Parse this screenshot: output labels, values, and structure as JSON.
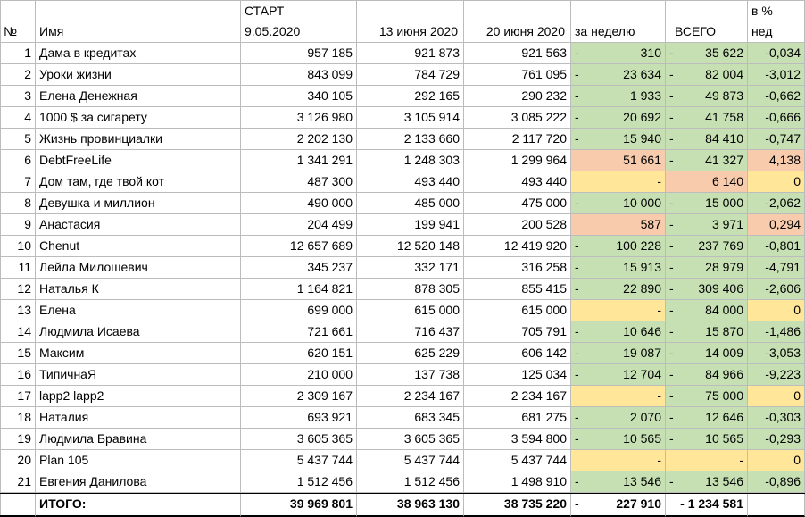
{
  "headers": {
    "num": "№",
    "name": "Имя",
    "start_line1": "СТАРТ",
    "start_line2": "9.05.2020",
    "date1": "13 июня 2020",
    "date2": "20 июня 2020",
    "week": "за неделю",
    "total": "ВСЕГО",
    "pct_line1": "в %",
    "pct_line2": "нед"
  },
  "rows": [
    {
      "n": "1",
      "name": "Дама в кредитах",
      "start": "957 185",
      "d1": "921 873",
      "d2": "921 563",
      "wdash": "-",
      "week": "310",
      "tdash": "-",
      "total": "35 622",
      "pct": "-0,034",
      "wcolor": "green",
      "tcolor": "green",
      "pcolor": "green"
    },
    {
      "n": "2",
      "name": "Уроки жизни",
      "start": "843 099",
      "d1": "784 729",
      "d2": "761 095",
      "wdash": "-",
      "week": "23 634",
      "tdash": "-",
      "total": "82 004",
      "pct": "-3,012",
      "wcolor": "green",
      "tcolor": "green",
      "pcolor": "green"
    },
    {
      "n": "3",
      "name": "Елена Денежная",
      "start": "340 105",
      "d1": "292 165",
      "d2": "290 232",
      "wdash": "-",
      "week": "1 933",
      "tdash": "-",
      "total": "49 873",
      "pct": "-0,662",
      "wcolor": "green",
      "tcolor": "green",
      "pcolor": "green"
    },
    {
      "n": "4",
      "name": "1000 $ за сигарету",
      "start": "3 126 980",
      "d1": "3 105 914",
      "d2": "3 085 222",
      "wdash": "-",
      "week": "20 692",
      "tdash": "-",
      "total": "41 758",
      "pct": "-0,666",
      "wcolor": "green",
      "tcolor": "green",
      "pcolor": "green"
    },
    {
      "n": "5",
      "name": "Жизнь провинциалки",
      "start": "2 202 130",
      "d1": "2 133 660",
      "d2": "2 117 720",
      "wdash": "-",
      "week": "15 940",
      "tdash": "-",
      "total": "84 410",
      "pct": "-0,747",
      "wcolor": "green",
      "tcolor": "green",
      "pcolor": "green"
    },
    {
      "n": "6",
      "name": "DebtFreeLife",
      "start": "1 341 291",
      "d1": "1 248 303",
      "d2": "1 299 964",
      "wdash": "",
      "week": "51 661",
      "tdash": "-",
      "total": "41 327",
      "pct": "4,138",
      "wcolor": "orange",
      "tcolor": "green",
      "pcolor": "orange"
    },
    {
      "n": "7",
      "name": "Дом там, где твой кот",
      "start": "487 300",
      "d1": "493 440",
      "d2": "493 440",
      "wdash": "",
      "week": "-",
      "tdash": "",
      "total": "6 140",
      "pct": "0",
      "wcolor": "yellow",
      "tcolor": "orange",
      "pcolor": "yellow"
    },
    {
      "n": "8",
      "name": "Девушка и миллион",
      "start": "490 000",
      "d1": "485 000",
      "d2": "475 000",
      "wdash": "-",
      "week": "10 000",
      "tdash": "-",
      "total": "15 000",
      "pct": "-2,062",
      "wcolor": "green",
      "tcolor": "green",
      "pcolor": "green"
    },
    {
      "n": "9",
      "name": "Анастасия",
      "start": "204 499",
      "d1": "199 941",
      "d2": "200 528",
      "wdash": "",
      "week": "587",
      "tdash": "-",
      "total": "3 971",
      "pct": "0,294",
      "wcolor": "orange",
      "tcolor": "green",
      "pcolor": "orange"
    },
    {
      "n": "10",
      "name": "Chenut",
      "start": "12 657 689",
      "d1": "12 520 148",
      "d2": "12 419 920",
      "wdash": "-",
      "week": "100 228",
      "tdash": "-",
      "total": "237 769",
      "pct": "-0,801",
      "wcolor": "green",
      "tcolor": "green",
      "pcolor": "green"
    },
    {
      "n": "11",
      "name": "Лейла Милошевич",
      "start": "345 237",
      "d1": "332 171",
      "d2": "316 258",
      "wdash": "-",
      "week": "15 913",
      "tdash": "-",
      "total": "28 979",
      "pct": "-4,791",
      "wcolor": "green",
      "tcolor": "green",
      "pcolor": "green"
    },
    {
      "n": "12",
      "name": "Наталья К",
      "start": "1 164 821",
      "d1": "878 305",
      "d2": "855 415",
      "wdash": "-",
      "week": "22 890",
      "tdash": "-",
      "total": "309 406",
      "pct": "-2,606",
      "wcolor": "green",
      "tcolor": "green",
      "pcolor": "green"
    },
    {
      "n": "13",
      "name": "Елена",
      "start": "699 000",
      "d1": "615 000",
      "d2": "615 000",
      "wdash": "",
      "week": "-",
      "tdash": "-",
      "total": "84 000",
      "pct": "0",
      "wcolor": "yellow",
      "tcolor": "green",
      "pcolor": "yellow"
    },
    {
      "n": "14",
      "name": "Людмила Исаева",
      "start": "721 661",
      "d1": "716 437",
      "d2": "705 791",
      "wdash": "-",
      "week": "10 646",
      "tdash": "-",
      "total": "15 870",
      "pct": "-1,486",
      "wcolor": "green",
      "tcolor": "green",
      "pcolor": "green"
    },
    {
      "n": "15",
      "name": "Максим",
      "start": "620 151",
      "d1": "625 229",
      "d2": "606 142",
      "wdash": "-",
      "week": "19 087",
      "tdash": "-",
      "total": "14 009",
      "pct": "-3,053",
      "wcolor": "green",
      "tcolor": "green",
      "pcolor": "green"
    },
    {
      "n": "16",
      "name": "ТипичнаЯ",
      "start": "210 000",
      "d1": "137 738",
      "d2": "125 034",
      "wdash": "-",
      "week": "12 704",
      "tdash": "-",
      "total": "84 966",
      "pct": "-9,223",
      "wcolor": "green",
      "tcolor": "green",
      "pcolor": "green"
    },
    {
      "n": "17",
      "name": "lapp2 lapp2",
      "start": "2 309 167",
      "d1": "2 234 167",
      "d2": "2 234 167",
      "wdash": "",
      "week": "-",
      "tdash": "-",
      "total": "75 000",
      "pct": "0",
      "wcolor": "yellow",
      "tcolor": "green",
      "pcolor": "yellow"
    },
    {
      "n": "18",
      "name": "Наталия",
      "start": "693 921",
      "d1": "683 345",
      "d2": "681 275",
      "wdash": "-",
      "week": "2 070",
      "tdash": "-",
      "total": "12 646",
      "pct": "-0,303",
      "wcolor": "green",
      "tcolor": "green",
      "pcolor": "green"
    },
    {
      "n": "19",
      "name": "Людмила Бравина",
      "start": "3 605 365",
      "d1": "3 605 365",
      "d2": "3 594 800",
      "wdash": "-",
      "week": "10 565",
      "tdash": "-",
      "total": "10 565",
      "pct": "-0,293",
      "wcolor": "green",
      "tcolor": "green",
      "pcolor": "green"
    },
    {
      "n": "20",
      "name": "Plan 105",
      "start": "5 437 744",
      "d1": "5 437 744",
      "d2": "5 437 744",
      "wdash": "",
      "week": "-",
      "tdash": "",
      "total": "-",
      "pct": "0",
      "wcolor": "yellow",
      "tcolor": "yellow",
      "pcolor": "yellow"
    },
    {
      "n": "21",
      "name": "Евгения Данилова",
      "start": "1 512 456",
      "d1": "1 512 456",
      "d2": "1 498 910",
      "wdash": "-",
      "week": "13 546",
      "tdash": "-",
      "total": "13 546",
      "pct": "-0,896",
      "wcolor": "green",
      "tcolor": "green",
      "pcolor": "green"
    }
  ],
  "totals": {
    "label": "ИТОГО:",
    "start": "39 969 801",
    "d1": "38 963 130",
    "d2": "38 735 220",
    "wdash": "-",
    "week": "227 910",
    "total": "- 1 234 581"
  }
}
